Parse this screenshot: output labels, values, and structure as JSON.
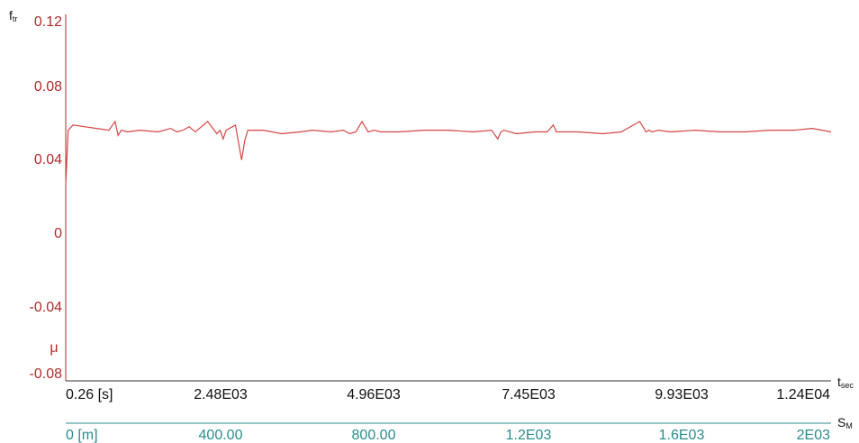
{
  "chart_data": {
    "type": "line",
    "y_label_main": "f",
    "y_label_sub": "tr",
    "y_unit_symbol": "μ",
    "y_ticks": [
      "0.12",
      "0.08",
      "0.04",
      "0",
      "-0.04",
      "-0.08"
    ],
    "ylim": [
      -0.08,
      0.12
    ],
    "x_label_main": "t",
    "x_label_sub": "sec",
    "x_ticks": [
      "0.26 [s]",
      "2.48E03",
      "4.96E03",
      "7.45E03",
      "9.93E03",
      "1.24E04"
    ],
    "xlim": [
      0.26,
      12400
    ],
    "s_label_main": "S",
    "s_label_sub": "M",
    "s_ticks": [
      "0 [m]",
      "400.00",
      "800.00",
      "1.2E03",
      "1.6E03",
      "2E03"
    ],
    "colors": {
      "series": "#d64545",
      "y_axis": "#b22a2a",
      "s_axis": "#2a8c8c",
      "x_axis": "#333333"
    },
    "series": [
      {
        "values_x": [
          0.26,
          40,
          120,
          300,
          500,
          700,
          800,
          850,
          900,
          1000,
          1200,
          1500,
          1700,
          1800,
          1900,
          2000,
          2100,
          2300,
          2450,
          2500,
          2550,
          2600,
          2750,
          2850,
          2900,
          2950,
          3000,
          3200,
          3500,
          3800,
          4000,
          4300,
          4500,
          4600,
          4700,
          4800,
          4900,
          5000,
          5100,
          5400,
          5800,
          6200,
          6600,
          6900,
          7000,
          7050,
          7100,
          7300,
          7600,
          7800,
          7900,
          7950,
          8000,
          8300,
          8700,
          9000,
          9300,
          9400,
          9450,
          9500,
          9600,
          9800,
          10200,
          10600,
          11000,
          11400,
          11800,
          12100,
          12400
        ],
        "values_y": [
          0.027,
          0.058,
          0.061,
          0.06,
          0.059,
          0.058,
          0.063,
          0.055,
          0.058,
          0.057,
          0.058,
          0.057,
          0.059,
          0.057,
          0.058,
          0.06,
          0.057,
          0.063,
          0.056,
          0.058,
          0.053,
          0.058,
          0.061,
          0.041,
          0.052,
          0.058,
          0.058,
          0.058,
          0.056,
          0.057,
          0.058,
          0.057,
          0.058,
          0.056,
          0.057,
          0.063,
          0.057,
          0.058,
          0.057,
          0.057,
          0.058,
          0.058,
          0.057,
          0.058,
          0.053,
          0.057,
          0.058,
          0.056,
          0.057,
          0.057,
          0.061,
          0.057,
          0.057,
          0.057,
          0.056,
          0.057,
          0.063,
          0.057,
          0.058,
          0.057,
          0.058,
          0.057,
          0.058,
          0.057,
          0.057,
          0.058,
          0.058,
          0.059,
          0.057
        ]
      }
    ]
  }
}
